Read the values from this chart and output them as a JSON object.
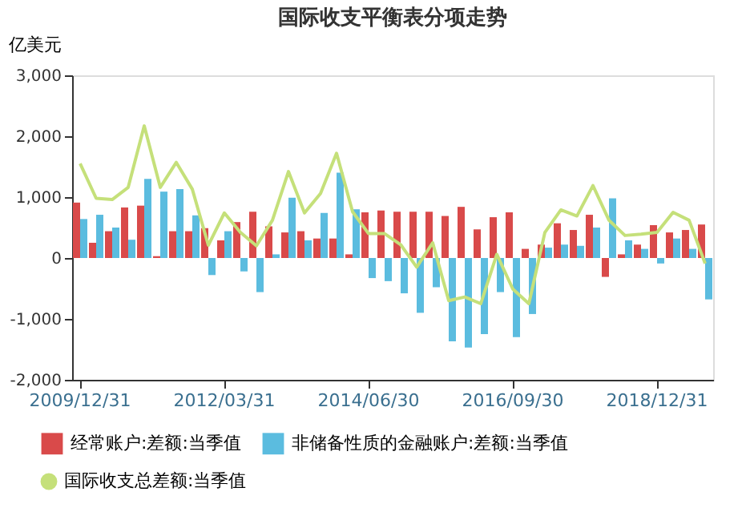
{
  "chart_data": {
    "type": "bar",
    "title": "国际收支平衡表分项走势",
    "ylabel": "亿美元",
    "categories": [
      "2009/12/31",
      null,
      null,
      null,
      null,
      null,
      null,
      null,
      null,
      "2012/03/31",
      null,
      null,
      null,
      null,
      null,
      null,
      null,
      null,
      "2014/06/30",
      null,
      null,
      null,
      null,
      null,
      null,
      null,
      null,
      "2016/09/30",
      null,
      null,
      null,
      null,
      null,
      null,
      null,
      null,
      "2018/12/31",
      null,
      null,
      null
    ],
    "series": [
      {
        "name": "经常账户:差额:当季值",
        "color": "#d94a4a",
        "values": [
          910,
          250,
          440,
          830,
          860,
          30,
          440,
          440,
          490,
          290,
          590,
          760,
          520,
          420,
          440,
          320,
          320,
          60,
          750,
          780,
          760,
          760,
          760,
          690,
          840,
          470,
          670,
          750,
          150,
          220,
          570,
          460,
          710,
          -310,
          60,
          220,
          540,
          420,
          460,
          550
        ]
      },
      {
        "name": "非储备性质的金融账户:差额:当季值",
        "color": "#5bbcdf",
        "values": [
          640,
          710,
          500,
          300,
          1300,
          1090,
          1130,
          700,
          -280,
          440,
          -220,
          -560,
          60,
          990,
          290,
          740,
          1400,
          800,
          -330,
          -380,
          -580,
          -900,
          -480,
          -1370,
          -1470,
          -1250,
          -560,
          -1300,
          -920,
          170,
          220,
          200,
          500,
          980,
          290,
          150,
          -90,
          320,
          150,
          -680
        ]
      },
      {
        "name": "国际收支总差额:当季值",
        "type": "line",
        "color": "#c5e07a",
        "marker": "none",
        "values": [
          1550,
          980,
          960,
          1160,
          2170,
          1160,
          1570,
          1130,
          210,
          740,
          420,
          200,
          620,
          1420,
          740,
          1060,
          1720,
          760,
          400,
          400,
          220,
          -150,
          250,
          -700,
          -640,
          -750,
          60,
          -510,
          -750,
          420,
          790,
          690,
          1190,
          620,
          370,
          390,
          420,
          750,
          620,
          -90
        ]
      }
    ],
    "ylim": [
      -2000,
      3000
    ],
    "yticks": [
      {
        "value": -2000,
        "label": "-2,000"
      },
      {
        "value": -1000,
        "label": "-1,000"
      },
      0,
      {
        "value": 1000,
        "label": "1,000"
      },
      {
        "value": 2000,
        "label": "2,000"
      },
      {
        "value": 3000,
        "label": "3,000"
      }
    ],
    "grid": false,
    "legend": "bottom"
  }
}
